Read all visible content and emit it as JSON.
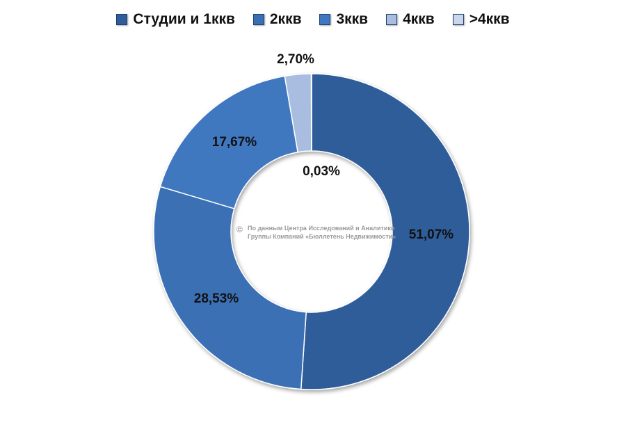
{
  "chart_data": {
    "type": "pie",
    "variant": "donut",
    "categories": [
      "Студии и 1ккв",
      "2ккв",
      "3ккв",
      "4ккв",
      ">4ккв"
    ],
    "values": [
      51.07,
      28.53,
      17.67,
      2.7,
      0.03
    ],
    "labels": [
      "51,07%",
      "28,53%",
      "17,67%",
      "2,70%",
      "0,03%"
    ],
    "colors": [
      "#2e5d9a",
      "#3a6fb5",
      "#3f78c0",
      "#a9bde0",
      "#c9d6ec"
    ],
    "legend_position": "top",
    "title": "",
    "watermark": {
      "symbol": "©",
      "line1": "По данным Центра Исследований и Аналитики",
      "line2": "Группы Компаний «Бюллетень Недвижимости»"
    }
  }
}
